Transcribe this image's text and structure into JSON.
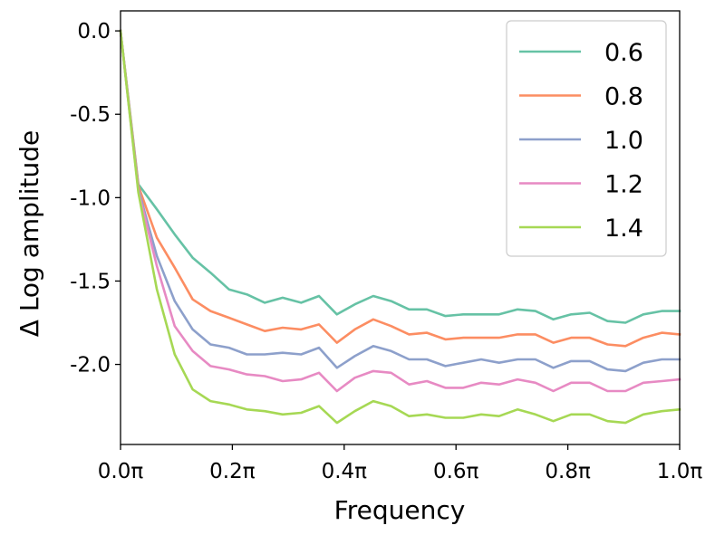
{
  "chart_data": {
    "type": "line",
    "xlabel": "Frequency",
    "ylabel": "Δ Log amplitude",
    "xlim": [
      0.0,
      1.0
    ],
    "ylim": [
      -2.48,
      0.12
    ],
    "x_ticks": [
      0.0,
      0.2,
      0.4,
      0.6,
      0.8,
      1.0
    ],
    "x_tick_labels": [
      "0.0π",
      "0.2π",
      "0.4π",
      "0.6π",
      "0.8π",
      "1.0π"
    ],
    "y_ticks": [
      0.0,
      -0.5,
      -1.0,
      -1.5,
      -2.0
    ],
    "y_tick_labels": [
      "0.0",
      "-0.5",
      "-1.0",
      "-1.5",
      "-2.0"
    ],
    "legend_position": "upper-right",
    "grid": false,
    "x": [
      0.0,
      0.032,
      0.065,
      0.097,
      0.129,
      0.161,
      0.194,
      0.226,
      0.258,
      0.29,
      0.323,
      0.355,
      0.387,
      0.419,
      0.452,
      0.484,
      0.516,
      0.548,
      0.581,
      0.613,
      0.645,
      0.677,
      0.71,
      0.742,
      0.774,
      0.806,
      0.839,
      0.871,
      0.903,
      0.935,
      0.968,
      1.0
    ],
    "series": [
      {
        "name": "0.6",
        "color": "#66c2a5",
        "values": [
          0.0,
          -0.92,
          -1.07,
          -1.22,
          -1.36,
          -1.45,
          -1.55,
          -1.58,
          -1.63,
          -1.6,
          -1.63,
          -1.59,
          -1.7,
          -1.64,
          -1.59,
          -1.62,
          -1.67,
          -1.67,
          -1.71,
          -1.7,
          -1.7,
          -1.7,
          -1.67,
          -1.68,
          -1.73,
          -1.7,
          -1.69,
          -1.74,
          -1.75,
          -1.7,
          -1.68,
          -1.68
        ]
      },
      {
        "name": "0.8",
        "color": "#fc8d62",
        "values": [
          0.0,
          -0.93,
          -1.24,
          -1.42,
          -1.61,
          -1.68,
          -1.72,
          -1.76,
          -1.8,
          -1.78,
          -1.79,
          -1.76,
          -1.87,
          -1.79,
          -1.73,
          -1.77,
          -1.82,
          -1.81,
          -1.85,
          -1.84,
          -1.84,
          -1.84,
          -1.82,
          -1.82,
          -1.87,
          -1.84,
          -1.84,
          -1.88,
          -1.89,
          -1.84,
          -1.81,
          -1.82
        ]
      },
      {
        "name": "1.0",
        "color": "#8da0cb",
        "values": [
          0.0,
          -0.95,
          -1.35,
          -1.62,
          -1.79,
          -1.88,
          -1.9,
          -1.94,
          -1.94,
          -1.93,
          -1.94,
          -1.9,
          -2.02,
          -1.95,
          -1.89,
          -1.92,
          -1.97,
          -1.97,
          -2.01,
          -1.99,
          -1.97,
          -1.99,
          -1.97,
          -1.97,
          -2.02,
          -1.98,
          -1.98,
          -2.03,
          -2.04,
          -1.99,
          -1.97,
          -1.97
        ]
      },
      {
        "name": "1.2",
        "color": "#e78ac3",
        "values": [
          0.0,
          -0.96,
          -1.41,
          -1.77,
          -1.92,
          -2.01,
          -2.03,
          -2.06,
          -2.07,
          -2.1,
          -2.09,
          -2.05,
          -2.16,
          -2.08,
          -2.04,
          -2.05,
          -2.12,
          -2.1,
          -2.14,
          -2.14,
          -2.11,
          -2.12,
          -2.09,
          -2.11,
          -2.16,
          -2.11,
          -2.11,
          -2.16,
          -2.16,
          -2.11,
          -2.1,
          -2.09
        ]
      },
      {
        "name": "1.4",
        "color": "#a6d854",
        "values": [
          0.0,
          -0.97,
          -1.55,
          -1.94,
          -2.15,
          -2.22,
          -2.24,
          -2.27,
          -2.28,
          -2.3,
          -2.29,
          -2.25,
          -2.35,
          -2.28,
          -2.22,
          -2.25,
          -2.31,
          -2.3,
          -2.32,
          -2.32,
          -2.3,
          -2.31,
          -2.27,
          -2.3,
          -2.34,
          -2.3,
          -2.3,
          -2.34,
          -2.35,
          -2.3,
          -2.28,
          -2.27
        ]
      }
    ]
  }
}
